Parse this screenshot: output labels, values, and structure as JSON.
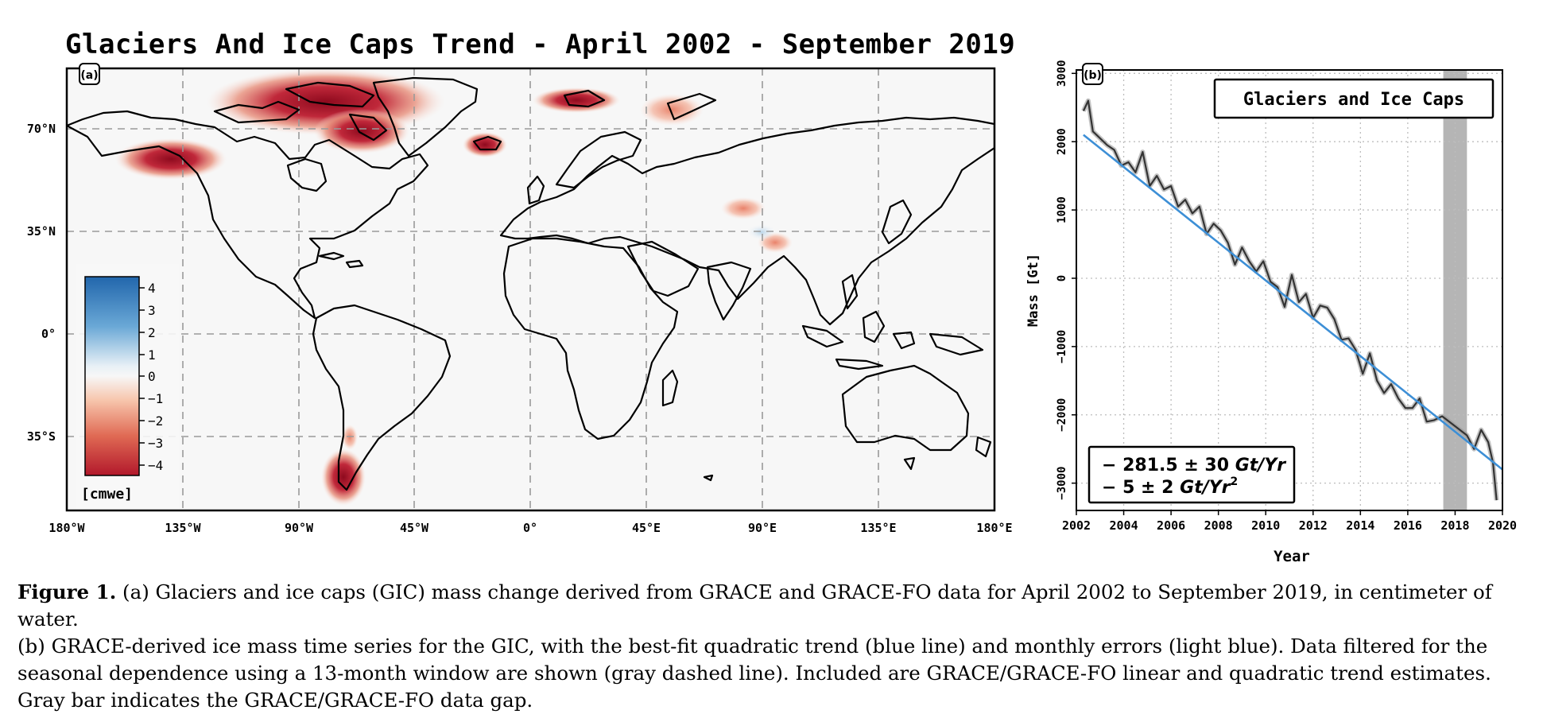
{
  "figure_a": {
    "title": "Glaciers And Ice Caps Trend - April 2002 - September 2019",
    "panel_label": "(a)",
    "lat_labels": [
      "70°N",
      "35°N",
      "0°",
      "35°S"
    ],
    "lon_labels": [
      "180°W",
      "135°W",
      "90°W",
      "45°W",
      "0°",
      "45°E",
      "90°E",
      "135°E",
      "180°E"
    ],
    "colorbar": {
      "ticks": [
        "4",
        "3",
        "2",
        "1",
        "0",
        "−1",
        "−2",
        "−3",
        "−4"
      ],
      "unit": "[cmwe]",
      "colors": {
        "max": "#2166ac",
        "mid": "#f7f7f7",
        "min": "#b2182b"
      }
    }
  },
  "chart_data": {
    "type": "line",
    "panel_label": "(b)",
    "legend": "Glaciers and Ice Caps",
    "xlabel": "Year",
    "ylabel": "Mass [Gt]",
    "xlim": [
      2002,
      2020
    ],
    "ylim": [
      -3400,
      3050
    ],
    "x_ticks": [
      "2002",
      "2004",
      "2006",
      "2008",
      "2010",
      "2012",
      "2014",
      "2016",
      "2018",
      "2020"
    ],
    "y_ticks": [
      "3000",
      "2000",
      "1000",
      "0",
      "−1000",
      "−2000",
      "−3000"
    ],
    "data_gap": [
      2017.5,
      2018.5
    ],
    "trend_linear": "− 281.5 ± 30",
    "trend_linear_unit": "Gt/Yr",
    "trend_quadratic": "− 5 ± 2",
    "trend_quadratic_unit": "Gt/Yr",
    "trend_quadratic_exp": "2",
    "series": [
      {
        "color": "#3d8fd6",
        "x": [
          2002.3,
          2020
        ],
        "y": [
          2100,
          -2800
        ]
      },
      {
        "color": "#333333",
        "x": [
          2002.3,
          2002.5,
          2002.7,
          2003.0,
          2003.3,
          2003.6,
          2003.9,
          2004.2,
          2004.5,
          2004.8,
          2005.1,
          2005.4,
          2005.7,
          2006.0,
          2006.3,
          2006.6,
          2006.9,
          2007.2,
          2007.5,
          2007.8,
          2008.1,
          2008.4,
          2008.7,
          2009.0,
          2009.3,
          2009.6,
          2009.9,
          2010.2,
          2010.5,
          2010.8,
          2011.1,
          2011.4,
          2011.7,
          2012.0,
          2012.3,
          2012.6,
          2012.9,
          2013.2,
          2013.5,
          2013.8,
          2014.1,
          2014.4,
          2014.7,
          2015.0,
          2015.3,
          2015.6,
          2015.9,
          2016.2,
          2016.5,
          2016.8,
          2017.1,
          2017.45,
          2018.5,
          2018.8,
          2019.1,
          2019.4,
          2019.6,
          2019.75
        ],
        "y": [
          2450,
          2600,
          2150,
          2050,
          1950,
          1880,
          1650,
          1700,
          1550,
          1850,
          1350,
          1500,
          1300,
          1350,
          1050,
          1150,
          950,
          1050,
          650,
          800,
          700,
          520,
          200,
          450,
          250,
          100,
          250,
          -50,
          -130,
          -420,
          50,
          -350,
          -230,
          -580,
          -400,
          -430,
          -600,
          -900,
          -880,
          -1050,
          -1400,
          -1100,
          -1500,
          -1680,
          -1550,
          -1760,
          -1900,
          -1900,
          -1760,
          -2100,
          -2080,
          -2020,
          -2300,
          -2500,
          -2220,
          -2400,
          -2700,
          -3250
        ]
      }
    ]
  },
  "caption": {
    "label": "Figure 1.",
    "text_a": " (a) Glaciers and ice caps (GIC) mass change derived from GRACE and GRACE-FO data for April 2002 to September 2019, in centimeter of water.",
    "text_b": "(b) GRACE-derived ice mass time series for the GIC, with the best-fit quadratic trend (blue line) and monthly errors (light blue). Data filtered for the seasonal dependence using a 13-month window are shown (gray dashed line). Included are GRACE/GRACE-FO linear and quadratic trend estimates. Gray bar indicates the GRACE/GRACE-FO data gap."
  }
}
